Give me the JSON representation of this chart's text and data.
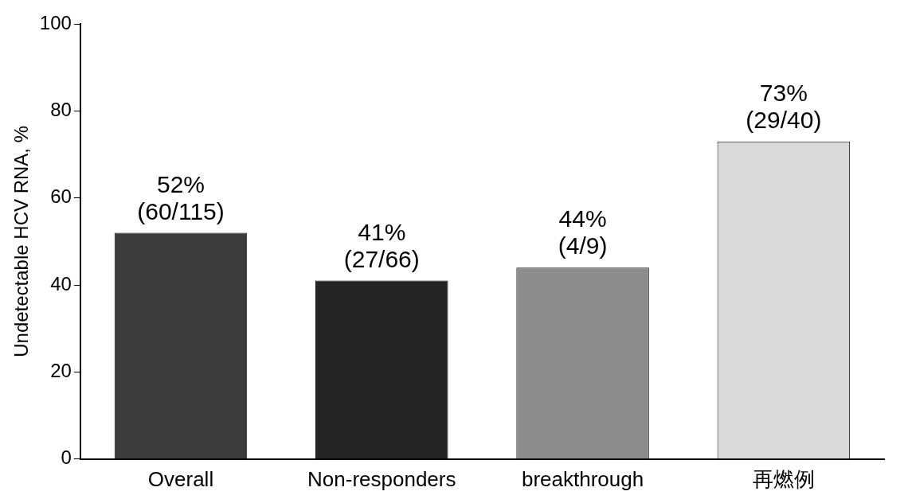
{
  "chart_data": {
    "type": "bar",
    "ylabel": "Undetectable HCV RNA, %",
    "categories": [
      "Overall",
      "Non-responders",
      "breakthrough",
      "再燃例"
    ],
    "values": [
      52,
      41,
      44,
      73
    ],
    "colors": [
      "#3c3c3c",
      "#242424",
      "#8c8c8c",
      "#d9d9d9"
    ],
    "value_labels": [
      "52% (60/115)",
      "41% (27/66)",
      "44% (4/9)",
      "73% (29/40)"
    ],
    "ylim": [
      0,
      100
    ],
    "yticks": [
      0,
      20,
      40,
      60,
      80,
      100
    ],
    "grid": false,
    "legend": false
  }
}
